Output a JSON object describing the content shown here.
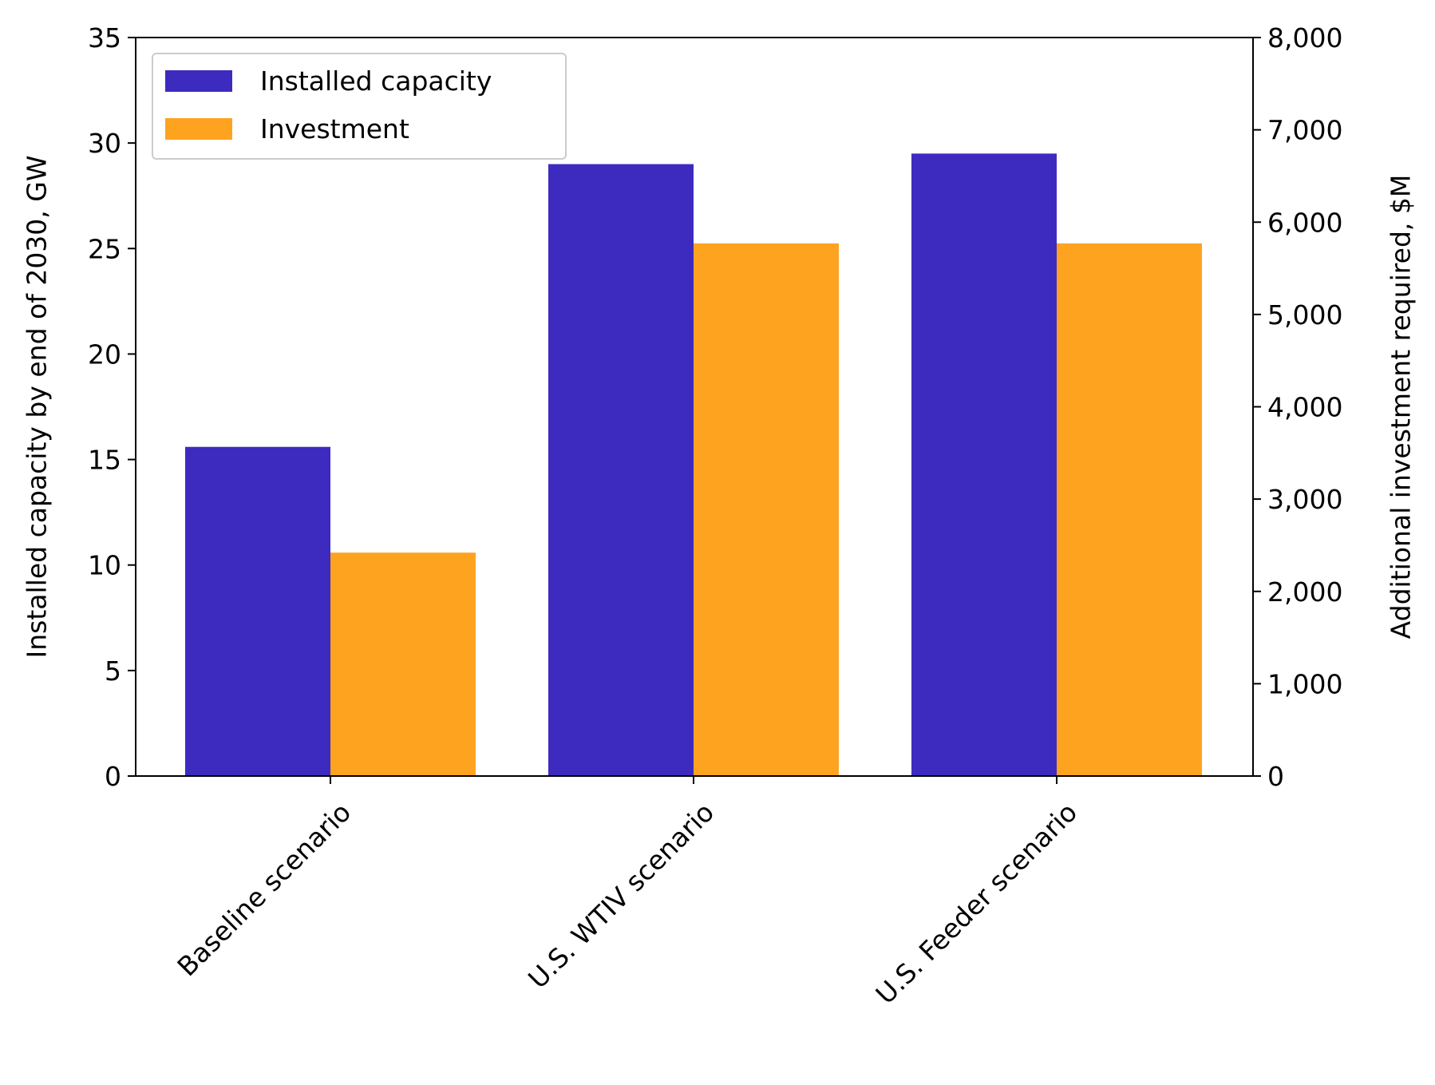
{
  "chart_data": {
    "type": "bar",
    "categories": [
      "Baseline scenario",
      "U.S. WTIV scenario",
      "U.S. Feeder scenario"
    ],
    "series": [
      {
        "name": "Installed capacity",
        "axis": "left",
        "color": "#3d2bbf",
        "values": [
          15.6,
          29.0,
          29.5
        ]
      },
      {
        "name": "Investment",
        "axis": "right",
        "color": "#fea320",
        "values": [
          2420,
          5770,
          5770
        ]
      }
    ],
    "y_left": {
      "label": "Installed capacity by end of 2030, GW",
      "lim": [
        0,
        35
      ],
      "ticks": [
        0,
        5,
        10,
        15,
        20,
        25,
        30,
        35
      ],
      "tick_labels": [
        "0",
        "5",
        "10",
        "15",
        "20",
        "25",
        "30",
        "35"
      ]
    },
    "y_right": {
      "label": "Additional investment required, $M",
      "lim": [
        0,
        8000
      ],
      "ticks": [
        0,
        1000,
        2000,
        3000,
        4000,
        5000,
        6000,
        7000,
        8000
      ],
      "tick_labels": [
        "0",
        "1,000",
        "2,000",
        "3,000",
        "4,000",
        "5,000",
        "6,000",
        "7,000",
        "8,000"
      ]
    },
    "legend_position": "top-left",
    "grid": false
  }
}
